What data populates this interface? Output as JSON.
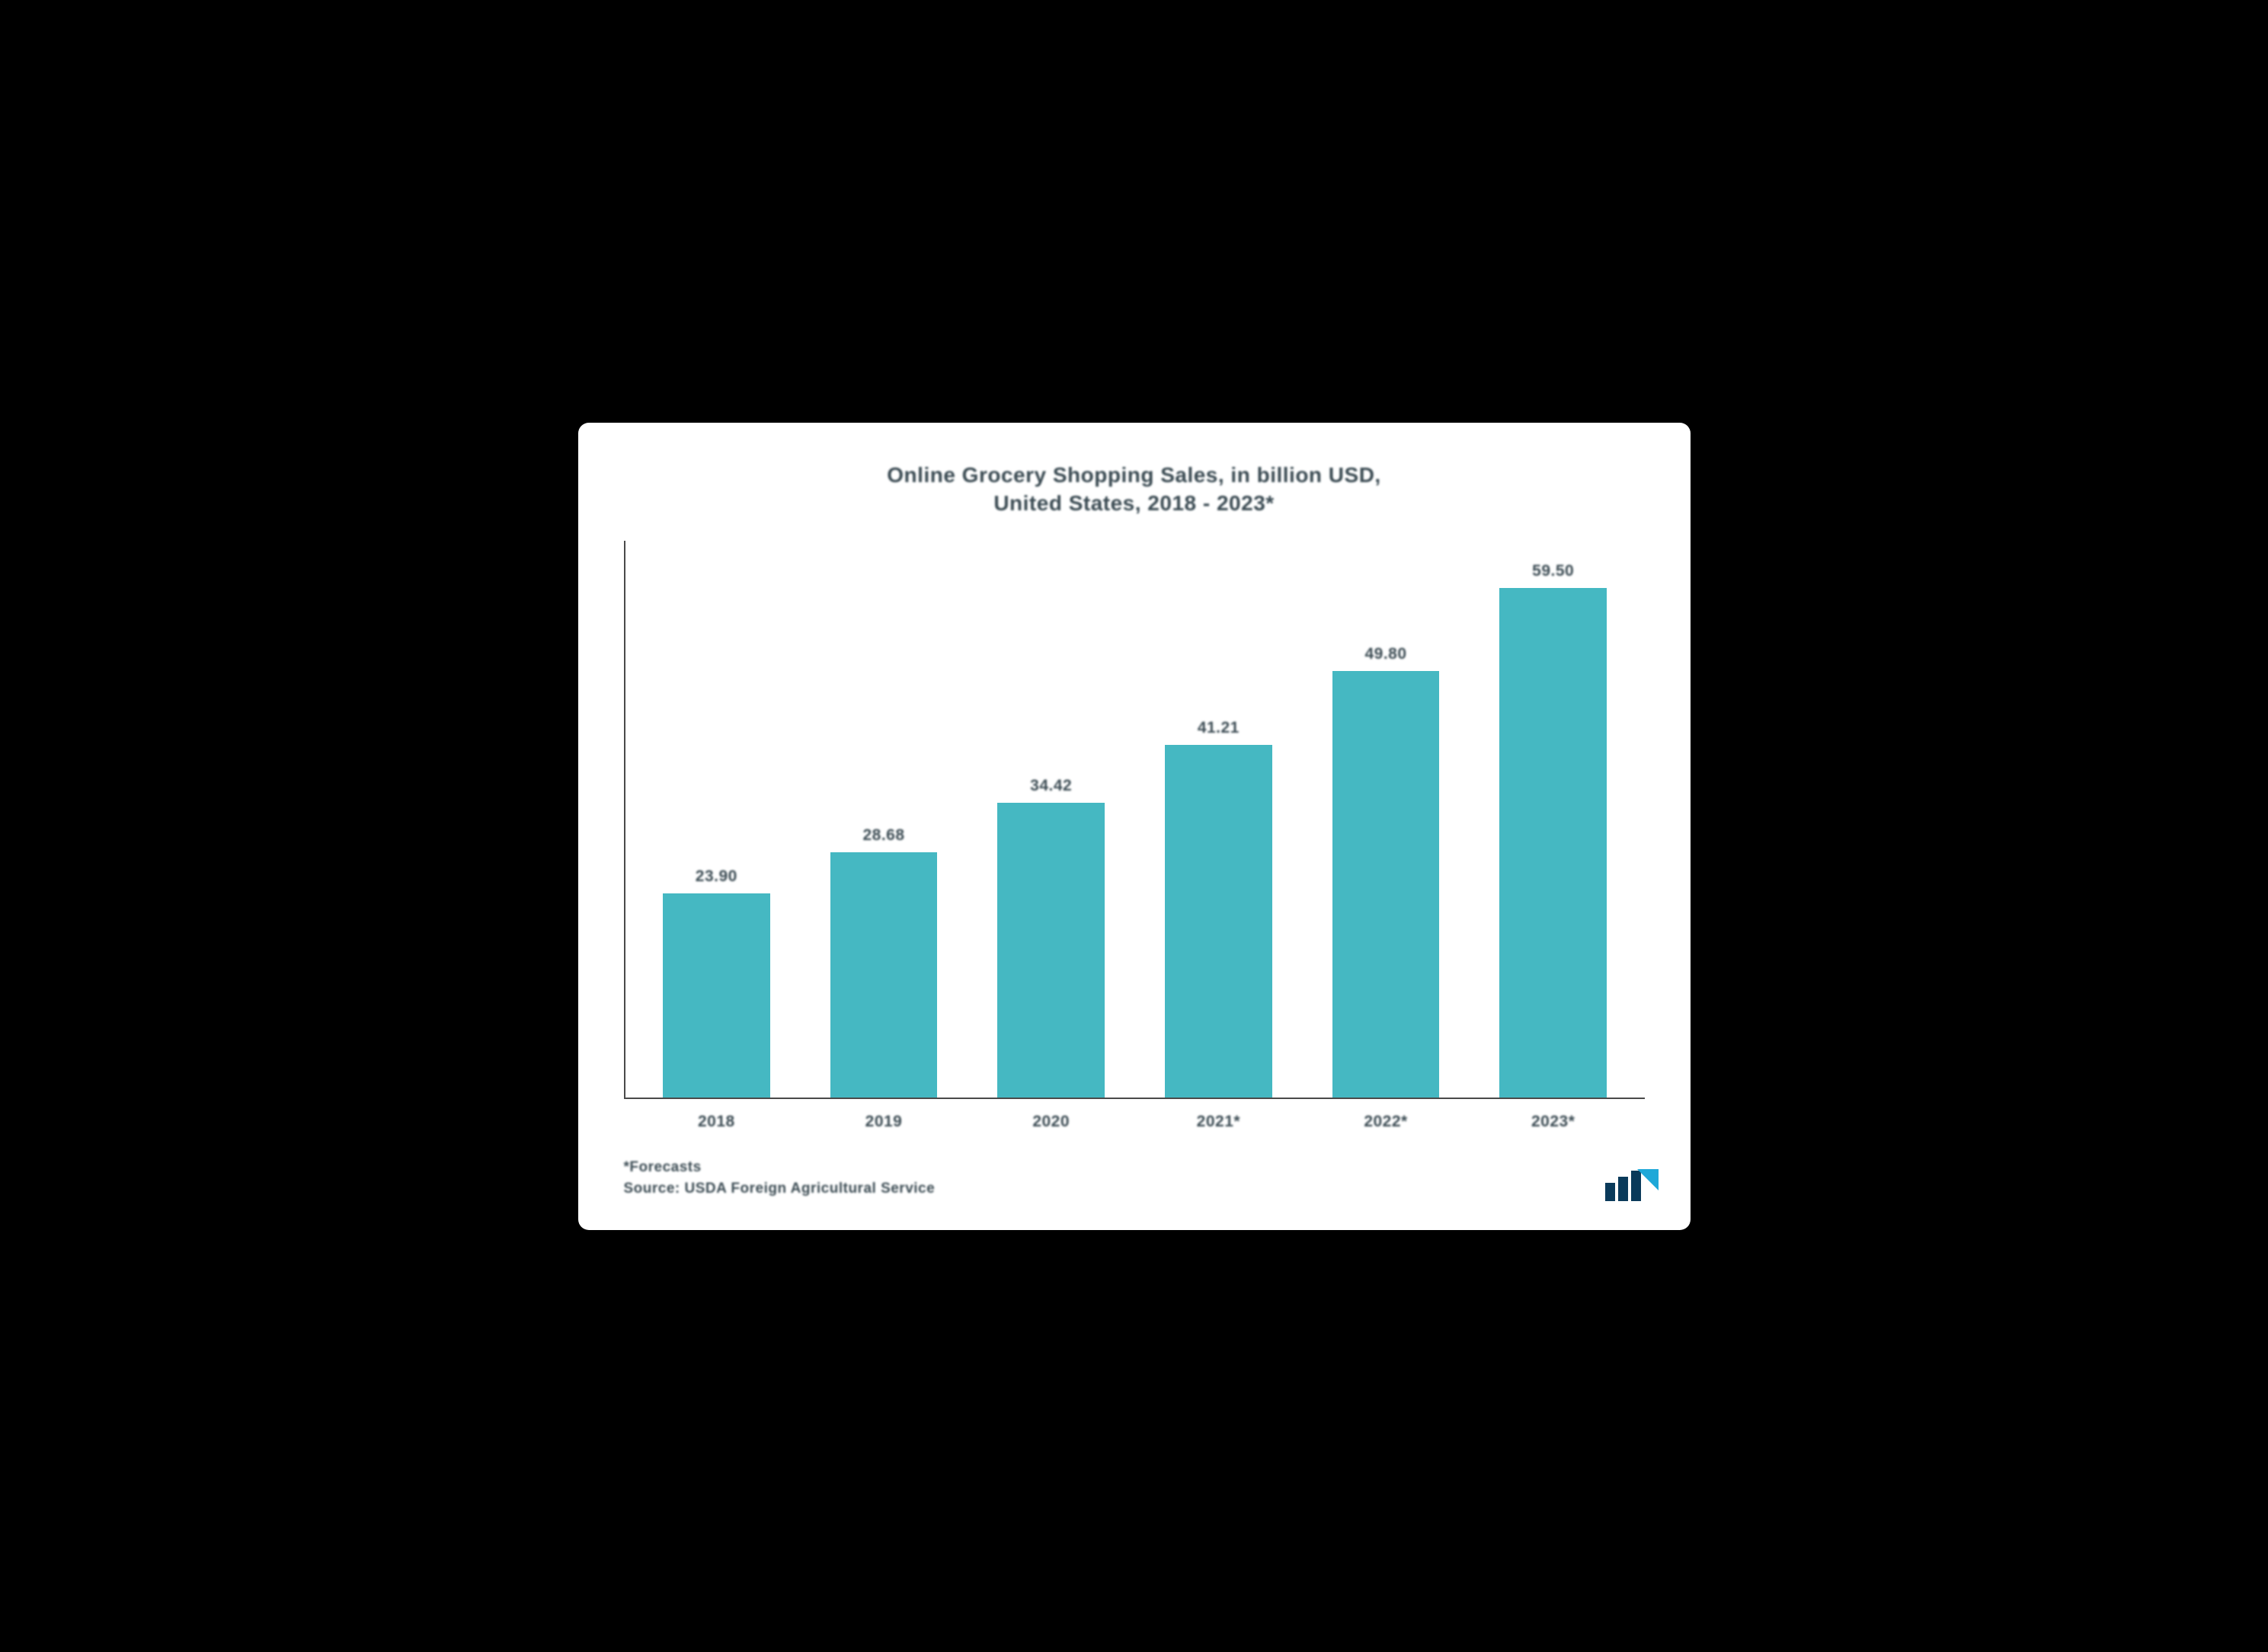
{
  "chart": {
    "type": "bar",
    "title_line1": "Online Grocery Shopping Sales, in billion USD,",
    "title_line2": "United States, 2018 - 2023*",
    "title_fontsize": 28,
    "title_color": "#3a4a52",
    "categories": [
      "2018",
      "2019",
      "2020",
      "2021*",
      "2022*",
      "2023*"
    ],
    "values": [
      23.9,
      28.68,
      34.42,
      41.21,
      49.8,
      59.5
    ],
    "value_labels": [
      "23.90",
      "28.68",
      "34.42",
      "41.21",
      "49.80",
      "59.50"
    ],
    "bar_color": "#45b8c2",
    "bar_width_pct": 64,
    "ylim": [
      0,
      65
    ],
    "axis_color": "#4a4a4a",
    "background_color": "#ffffff",
    "page_background": "#000000",
    "label_fontsize": 21,
    "xlabel_fontsize": 21,
    "value_label_color": "#3a4a52",
    "xlabel_color": "#3a4a52"
  },
  "footer": {
    "forecasts_note": "*Forecasts",
    "source_note": "Source: USDA Foreign Agricultural Service",
    "fontsize": 19,
    "color": "#3a4a52"
  },
  "logo": {
    "bar_color": "#0a3a5a",
    "accent_color": "#1fa8d8"
  }
}
